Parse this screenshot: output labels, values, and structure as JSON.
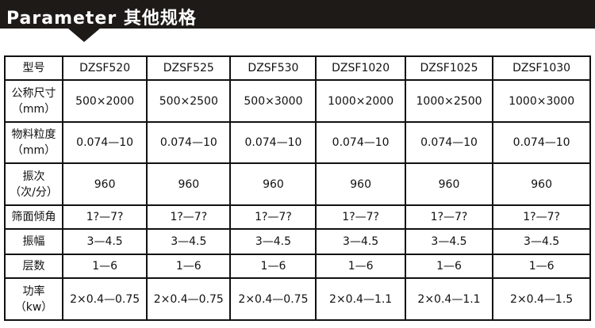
{
  "header": {
    "title": "Parameter 其他规格"
  },
  "table": {
    "models": [
      "DZSF520",
      "DZSF525",
      "DZSF530",
      "DZSF1020",
      "DZSF1025",
      "DZSF1030"
    ],
    "rows": [
      {
        "label": "型号",
        "label2": "",
        "values": [
          "DZSF520",
          "DZSF525",
          "DZSF530",
          "DZSF1020",
          "DZSF1025",
          "DZSF1030"
        ]
      },
      {
        "label": "公称尺寸",
        "label2": "（mm）",
        "values": [
          "500×2000",
          "500×2500",
          "500×3000",
          "1000×2000",
          "1000×2500",
          "1000×3000"
        ]
      },
      {
        "label": "物料粒度",
        "label2": "（mm）",
        "values": [
          "0.074—10",
          "0.074—10",
          "0.074—10",
          "0.074—10",
          "0.074—10",
          "0.074—10"
        ]
      },
      {
        "label": "振次",
        "label2": "（次/分）",
        "values": [
          "960",
          "960",
          "960",
          "960",
          "960",
          "960"
        ]
      },
      {
        "label": "筛面倾角",
        "label2": "",
        "values": [
          "1?—7?",
          "1?—7?",
          "1?—7?",
          "1?—7?",
          "1?—7?",
          "1?—7?"
        ]
      },
      {
        "label": "振幅",
        "label2": "",
        "values": [
          "3—4.5",
          "3—4.5",
          "3—4.5",
          "3—4.5",
          "3—4.5",
          "3—4.5"
        ]
      },
      {
        "label": "层数",
        "label2": "",
        "values": [
          "1—6",
          "1—6",
          "1—6",
          "1—6",
          "1—6",
          "1—6"
        ]
      },
      {
        "label": "功率",
        "label2": "（kw）",
        "values": [
          "2×0.4—0.75",
          "2×0.4—0.75",
          "2×0.4—0.75",
          "2×0.4—1.1",
          "2×0.4—1.1",
          "2×0.4—1.5"
        ]
      }
    ]
  }
}
